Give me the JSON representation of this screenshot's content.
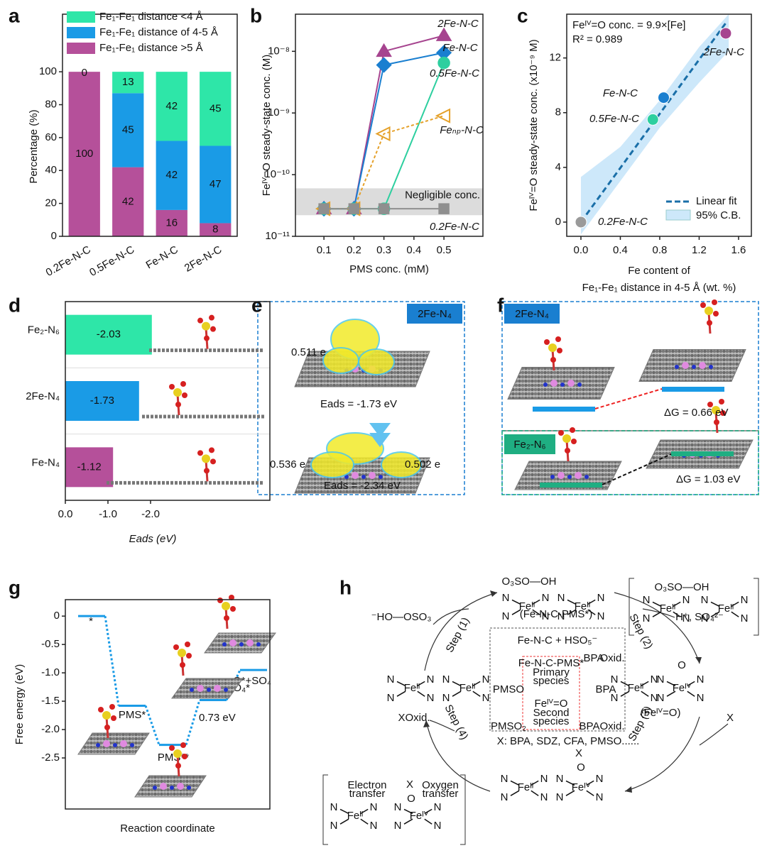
{
  "panel_labels": [
    "a",
    "b",
    "c",
    "d",
    "e",
    "f",
    "g",
    "h"
  ],
  "chart_data": [
    {
      "type": "stacked_bar",
      "categories": [
        "0.2Fe-N-C",
        "0.5Fe-N-C",
        "Fe-N-C",
        "2Fe-N-C"
      ],
      "series": [
        {
          "name": "Fe₁-Fe₁ distance <4 Å",
          "color": "#2ee6a8",
          "values": [
            0,
            13,
            42,
            45
          ],
          "value_labels": [
            null,
            "13",
            "42",
            "45"
          ]
        },
        {
          "name": "Fe₁-Fe₁ distance of 4-5 Å",
          "color": "#1a9be6",
          "values": [
            0,
            45,
            42,
            47
          ]
        },
        {
          "name": "Fe₁-Fe₁ distance >5 Å",
          "color": "#b5509a",
          "values": [
            100,
            42,
            16,
            8
          ]
        }
      ],
      "ylabel": "Percentage (%)",
      "ylim": [
        0,
        135
      ],
      "yticks": [
        0,
        20,
        40,
        60,
        80,
        100
      ]
    },
    {
      "type": "line",
      "log_y": true,
      "x": [
        0.1,
        0.2,
        0.3,
        0.5
      ],
      "series": [
        {
          "name": "2Fe-N-C",
          "color": "#a6448f",
          "marker": "triangle",
          "values": [
            2.8e-11,
            2.8e-11,
            1e-08,
            1.8e-08
          ]
        },
        {
          "name": "Fe-N-C",
          "color": "#1a7fd0",
          "marker": "diamond",
          "values": [
            2.8e-11,
            2.8e-11,
            6e-09,
            9.5e-09
          ]
        },
        {
          "name": "0.5Fe-N-C",
          "color": "#2dcf9f",
          "marker": "circle",
          "values": [
            2.8e-11,
            2.8e-11,
            2.8e-11,
            6.5e-09
          ]
        },
        {
          "name": "Feₙₚ-N-C",
          "color": "#e5a12a",
          "marker": "left-triangle",
          "dashed": true,
          "values": [
            2.8e-11,
            2.8e-11,
            4.6e-10,
            9e-10
          ]
        },
        {
          "name": "0.2Fe-N-C",
          "color": "#8f8f8f",
          "marker": "square",
          "values": [
            2.8e-11,
            2.8e-11,
            2.8e-11,
            2.8e-11
          ]
        }
      ],
      "band": [
        2.2e-11,
        6e-11
      ],
      "band_label": "Negligible conc.",
      "xlabel": "PMS conc. (mM)",
      "ylabel": "Feᴵⱽ=O steady-state conc. (M)",
      "xlim": [
        0.005,
        0.63
      ],
      "xticks": [
        0.1,
        0.2,
        0.3,
        0.4,
        0.5
      ],
      "ylim": [
        1e-11,
        4e-08
      ],
      "yticks": [
        {
          "value": 1e-11,
          "label": "10⁻¹¹"
        },
        {
          "value": 1e-10,
          "label": "10⁻¹⁰"
        },
        {
          "value": 1e-09,
          "label": "10⁻⁹"
        },
        {
          "value": 1e-08,
          "label": "10⁻⁸"
        }
      ]
    },
    {
      "type": "scatter",
      "series": [
        {
          "name": "0.2Fe-N-C",
          "color": "#9a9a9a",
          "x": [
            0
          ],
          "values": [
            0
          ]
        },
        {
          "name": "0.5Fe-N-C",
          "color": "#2dcf9f",
          "x": [
            0.73
          ],
          "values": [
            7.5
          ]
        },
        {
          "name": "Fe-N-C",
          "color": "#1a7fd0",
          "x": [
            0.84
          ],
          "values": [
            9.1
          ]
        },
        {
          "name": "2Fe-N-C",
          "color": "#a6448f",
          "x": [
            1.47
          ],
          "values": [
            13.8
          ]
        }
      ],
      "fit_slope": 9.9,
      "fit_label": "Linear fit",
      "band_label": "95% C.B.",
      "ci_x": [
        0,
        0.4,
        0.8,
        1.2,
        1.5
      ],
      "ci_lower": [
        -0.9,
        3.0,
        6.9,
        10.2,
        12.5
      ],
      "ci_upper": [
        3.3,
        5.5,
        8.9,
        12.8,
        15.2
      ],
      "annotation": "Feᴵⱽ=O conc. = 9.9×[Fe]",
      "r2": "R² = 0.989",
      "xlabel": [
        "Fe content of",
        "Fe₁-Fe₁ distance in 4-5 Å (wt. %)"
      ],
      "ylabel": "Feᴵⱽ=O steady-state conc. (x10⁻⁹ M)",
      "xlim": [
        -0.144,
        1.73
      ],
      "xticks": [
        {
          "value": 0,
          "label": "0.0"
        },
        0.4,
        0.8,
        1.2,
        1.6
      ],
      "ylim": [
        -1.04,
        15.2
      ],
      "yticks": [
        0,
        4,
        8,
        12
      ]
    },
    {
      "type": "hbar",
      "categories": [
        "Fe₂-N₆",
        "2Fe-N₄",
        "Fe-N₄"
      ],
      "values": [
        -2.03,
        -1.73,
        -1.12
      ],
      "colors": [
        "#2ee6a8",
        "#1a9be6",
        "#b5509a"
      ],
      "xlabel": "Eads (eV)",
      "xlim": [
        0,
        -4.8
      ],
      "xticks": [
        {
          "value": 0,
          "label": "0.0"
        },
        {
          "value": -1,
          "label": "-1.0"
        },
        {
          "value": -2,
          "label": "-2.0"
        }
      ]
    },
    {
      "type": "energy",
      "categories": [
        "*",
        "PMS*",
        "PMS**",
        "O*+SO₄*",
        "O*+SO₄"
      ],
      "values": [
        0,
        -1.58,
        -2.27,
        -1.48,
        -0.95
      ],
      "color": "#1a9be6",
      "annotation": "0.73 eV",
      "xlabel": "Reaction coordinate",
      "ylabel": "Free energy (eV)",
      "ylim": [
        -3.4,
        0.29
      ],
      "yticks": [
        0,
        -0.5,
        {
          "value": -1,
          "label": "-1.0"
        },
        -1.5,
        {
          "value": -2,
          "label": "-2.0"
        },
        -2.5
      ]
    }
  ],
  "panel_e": {
    "tag": "2Fe-N₄",
    "charge_1": "0.511 e",
    "eads_1": "Eads = -1.73 eV",
    "charge_2": "0.536 e",
    "charge_3": "0.502 e",
    "eads_2": "Eads = -2.34 eV"
  },
  "panel_f": {
    "tag_1": "2Fe-N₄",
    "dg_1": "ΔG = 0.66 eV",
    "tag_2": "Fe₂-N₆",
    "dg_2": "ΔG = 1.03 eV"
  },
  "panel_h": {
    "ligand": "N",
    "fe_centers": [
      "Feᴵᴵ",
      "Feᴵᴵ",
      "Feᴵᴵ",
      "Feᴵᴵ",
      "Feᴵᴵ",
      "Feᴵᴵ",
      "Feᴵᴵ",
      "Feᴵⱽ",
      "Feᴵᴵ",
      "Feᴵⱽ",
      "Feᴵᴵ",
      "Feᴵⱽ"
    ],
    "texts": [
      "O₃SO—OH",
      "O₃SO—OH",
      "(Fe-N-C-PMS*)",
      "⁻HO—OSO₃",
      "H⁺, SO₄²⁻",
      "Fe-N-C + HSO₅⁻",
      "Fe-N-C-PMS*",
      "Primary",
      "species",
      "Feᴵⱽ=O",
      "Second",
      "species",
      "BPA",
      "Oxid.",
      "BPA",
      "BPA",
      "Oxid.",
      "PMSO",
      "PMSO₂",
      "X: BPA, SDZ, CFA, PMSO......",
      "Step (1)",
      "Step (2)",
      "Step (3)",
      "Step (4)",
      "(Feᴵⱽ=O)",
      "X",
      "XOxid.",
      "Electron",
      "transfer",
      "Oxygen",
      "transfer",
      "X",
      "O",
      "O",
      "X",
      "O"
    ]
  }
}
